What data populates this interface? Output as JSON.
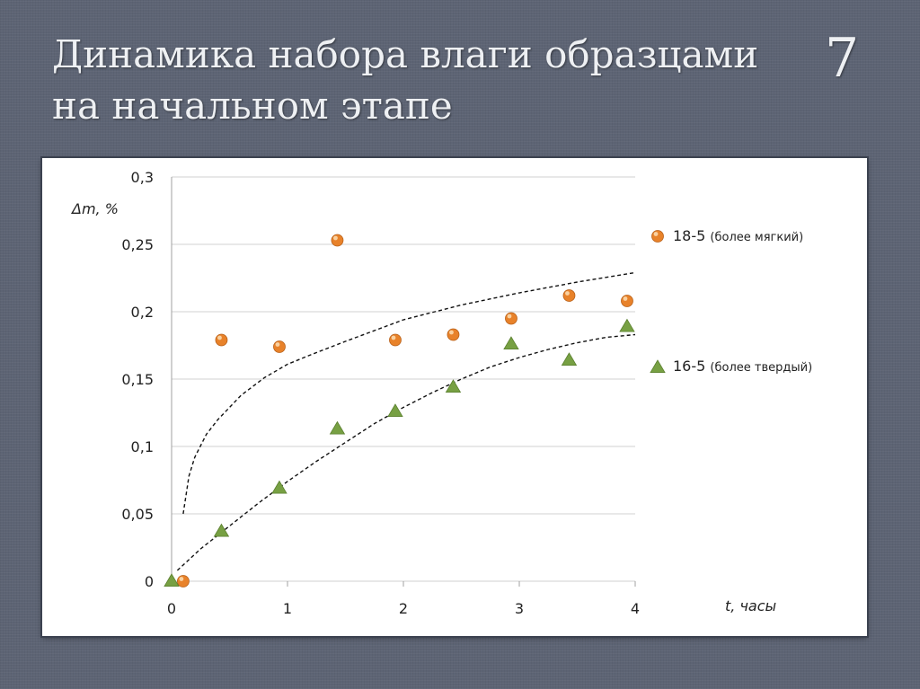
{
  "slide": {
    "title_line1": "Динамика набора влаги образцами",
    "title_line2": "на начальном этапе",
    "number": "7"
  },
  "colors": {
    "background": "#5d6474",
    "series_orange": "#e8822a",
    "series_green": "#77a043",
    "grid": "#d0d0d0",
    "trend": "#111111"
  },
  "chart_data": {
    "type": "scatter",
    "xlabel": "t, часы",
    "ylabel": "Δm, %",
    "xlim": [
      0,
      4
    ],
    "ylim": [
      0,
      0.3
    ],
    "x_ticks": [
      "0",
      "1",
      "2",
      "3",
      "4"
    ],
    "y_ticks": [
      "0",
      "0,05",
      "0,1",
      "0,15",
      "0,2",
      "0,25",
      "0,3"
    ],
    "grid": "horizontal",
    "legend_position": "right",
    "series": [
      {
        "name": "18-5",
        "note": "(более мягкий)",
        "marker": "circle",
        "color": "#e8822a",
        "points": [
          [
            0.1,
            0
          ],
          [
            0.43,
            0.179
          ],
          [
            0.93,
            0.174
          ],
          [
            1.43,
            0.253
          ],
          [
            1.93,
            0.179
          ],
          [
            2.43,
            0.183
          ],
          [
            2.93,
            0.195
          ],
          [
            3.43,
            0.212
          ],
          [
            3.93,
            0.208
          ]
        ]
      },
      {
        "name": "16-5",
        "note": "(более твердый)",
        "marker": "triangle",
        "color": "#77a043",
        "points": [
          [
            0,
            0
          ],
          [
            0.43,
            0.037
          ],
          [
            0.93,
            0.069
          ],
          [
            1.43,
            0.113
          ],
          [
            1.93,
            0.126
          ],
          [
            2.43,
            0.144
          ],
          [
            2.93,
            0.176
          ],
          [
            3.43,
            0.164
          ],
          [
            3.93,
            0.189
          ]
        ]
      }
    ],
    "trendlines": [
      {
        "series": "18-5",
        "style": "dashed",
        "points": [
          [
            0.1,
            0.05
          ],
          [
            0.15,
            0.078
          ],
          [
            0.2,
            0.092
          ],
          [
            0.3,
            0.109
          ],
          [
            0.4,
            0.12
          ],
          [
            0.6,
            0.138
          ],
          [
            0.8,
            0.151
          ],
          [
            1.0,
            0.161
          ],
          [
            1.2,
            0.168
          ],
          [
            1.5,
            0.178
          ],
          [
            2.0,
            0.194
          ],
          [
            2.5,
            0.205
          ],
          [
            3.0,
            0.214
          ],
          [
            3.5,
            0.222
          ],
          [
            4.0,
            0.229
          ]
        ]
      },
      {
        "series": "16-5",
        "style": "dashed",
        "points": [
          [
            0.05,
            0.008
          ],
          [
            0.25,
            0.024
          ],
          [
            0.5,
            0.041
          ],
          [
            0.75,
            0.058
          ],
          [
            1.0,
            0.074
          ],
          [
            1.25,
            0.089
          ],
          [
            1.5,
            0.103
          ],
          [
            1.75,
            0.117
          ],
          [
            2.0,
            0.129
          ],
          [
            2.25,
            0.14
          ],
          [
            2.5,
            0.15
          ],
          [
            2.75,
            0.159
          ],
          [
            3.0,
            0.166
          ],
          [
            3.25,
            0.172
          ],
          [
            3.5,
            0.177
          ],
          [
            3.75,
            0.181
          ],
          [
            4.0,
            0.183
          ]
        ]
      }
    ]
  }
}
